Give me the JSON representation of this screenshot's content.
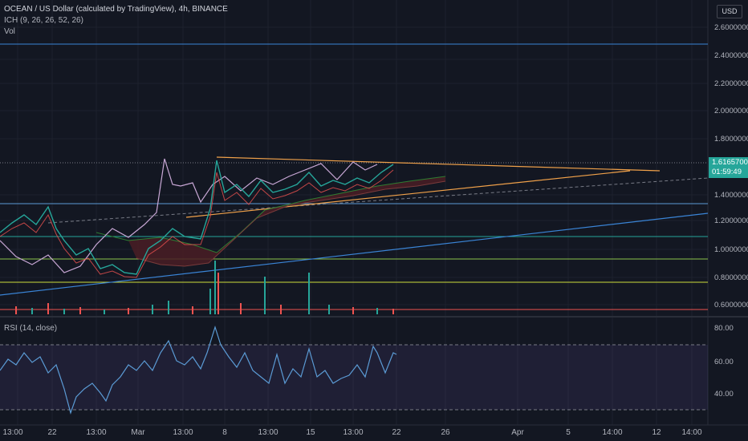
{
  "chart_title": "OCEAN / US Dollar (calculated by TradingView), 4h, BINANCE",
  "indicator_ichimoku": "ICH (9, 26, 26, 52, 26)",
  "indicator_volume": "Vol",
  "rsi_label": "RSI (14, close)",
  "currency_button": "USD",
  "last_price": "1.61657000",
  "countdown": "01:59:49",
  "price_axis": [
    "2.60000000",
    "2.40000000",
    "2.20000000",
    "2.00000000",
    "1.80000000",
    "1.40000000",
    "1.20000000",
    "1.00000000",
    "0.80000000",
    "0.60000000"
  ],
  "rsi_axis": [
    "80.00",
    "60.00",
    "40.00"
  ],
  "time_axis": [
    "13:00",
    "22",
    "13:00",
    "Mar",
    "13:00",
    "8",
    "13:00",
    "15",
    "13:00",
    "22",
    "26",
    "Apr",
    "5",
    "14:00",
    "12",
    "14:00"
  ],
  "colors": {
    "background": "#131722",
    "up": "#26a69a",
    "down": "#ef5350",
    "trendline": "#f0a14a",
    "rsi": "#5b9bd5"
  }
}
